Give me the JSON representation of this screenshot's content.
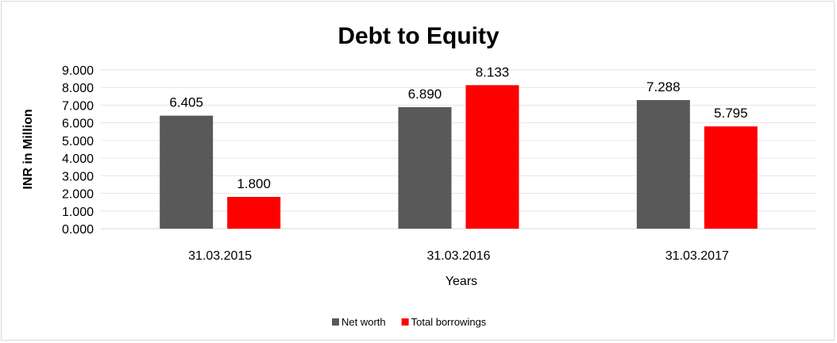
{
  "chart_data": {
    "type": "bar",
    "title": "Debt to Equity",
    "xlabel": "Years",
    "ylabel": "INR in Million",
    "categories": [
      "31.03.2015",
      "31.03.2016",
      "31.03.2017"
    ],
    "series": [
      {
        "name": "Net worth",
        "values": [
          6.405,
          6.89,
          7.288
        ],
        "labels": [
          "6.405",
          "6.890",
          "7.288"
        ],
        "color": "#595959"
      },
      {
        "name": "Total borrowings",
        "values": [
          1.8,
          8.133,
          5.795
        ],
        "labels": [
          "1.800",
          "8.133",
          "5.795"
        ],
        "color": "#ff0000"
      }
    ],
    "ylim": [
      0,
      9
    ],
    "yticks": [
      "0.000",
      "1.000",
      "2.000",
      "3.000",
      "4.000",
      "5.000",
      "6.000",
      "7.000",
      "8.000",
      "9.000"
    ],
    "grid": true,
    "legend": "bottom"
  }
}
